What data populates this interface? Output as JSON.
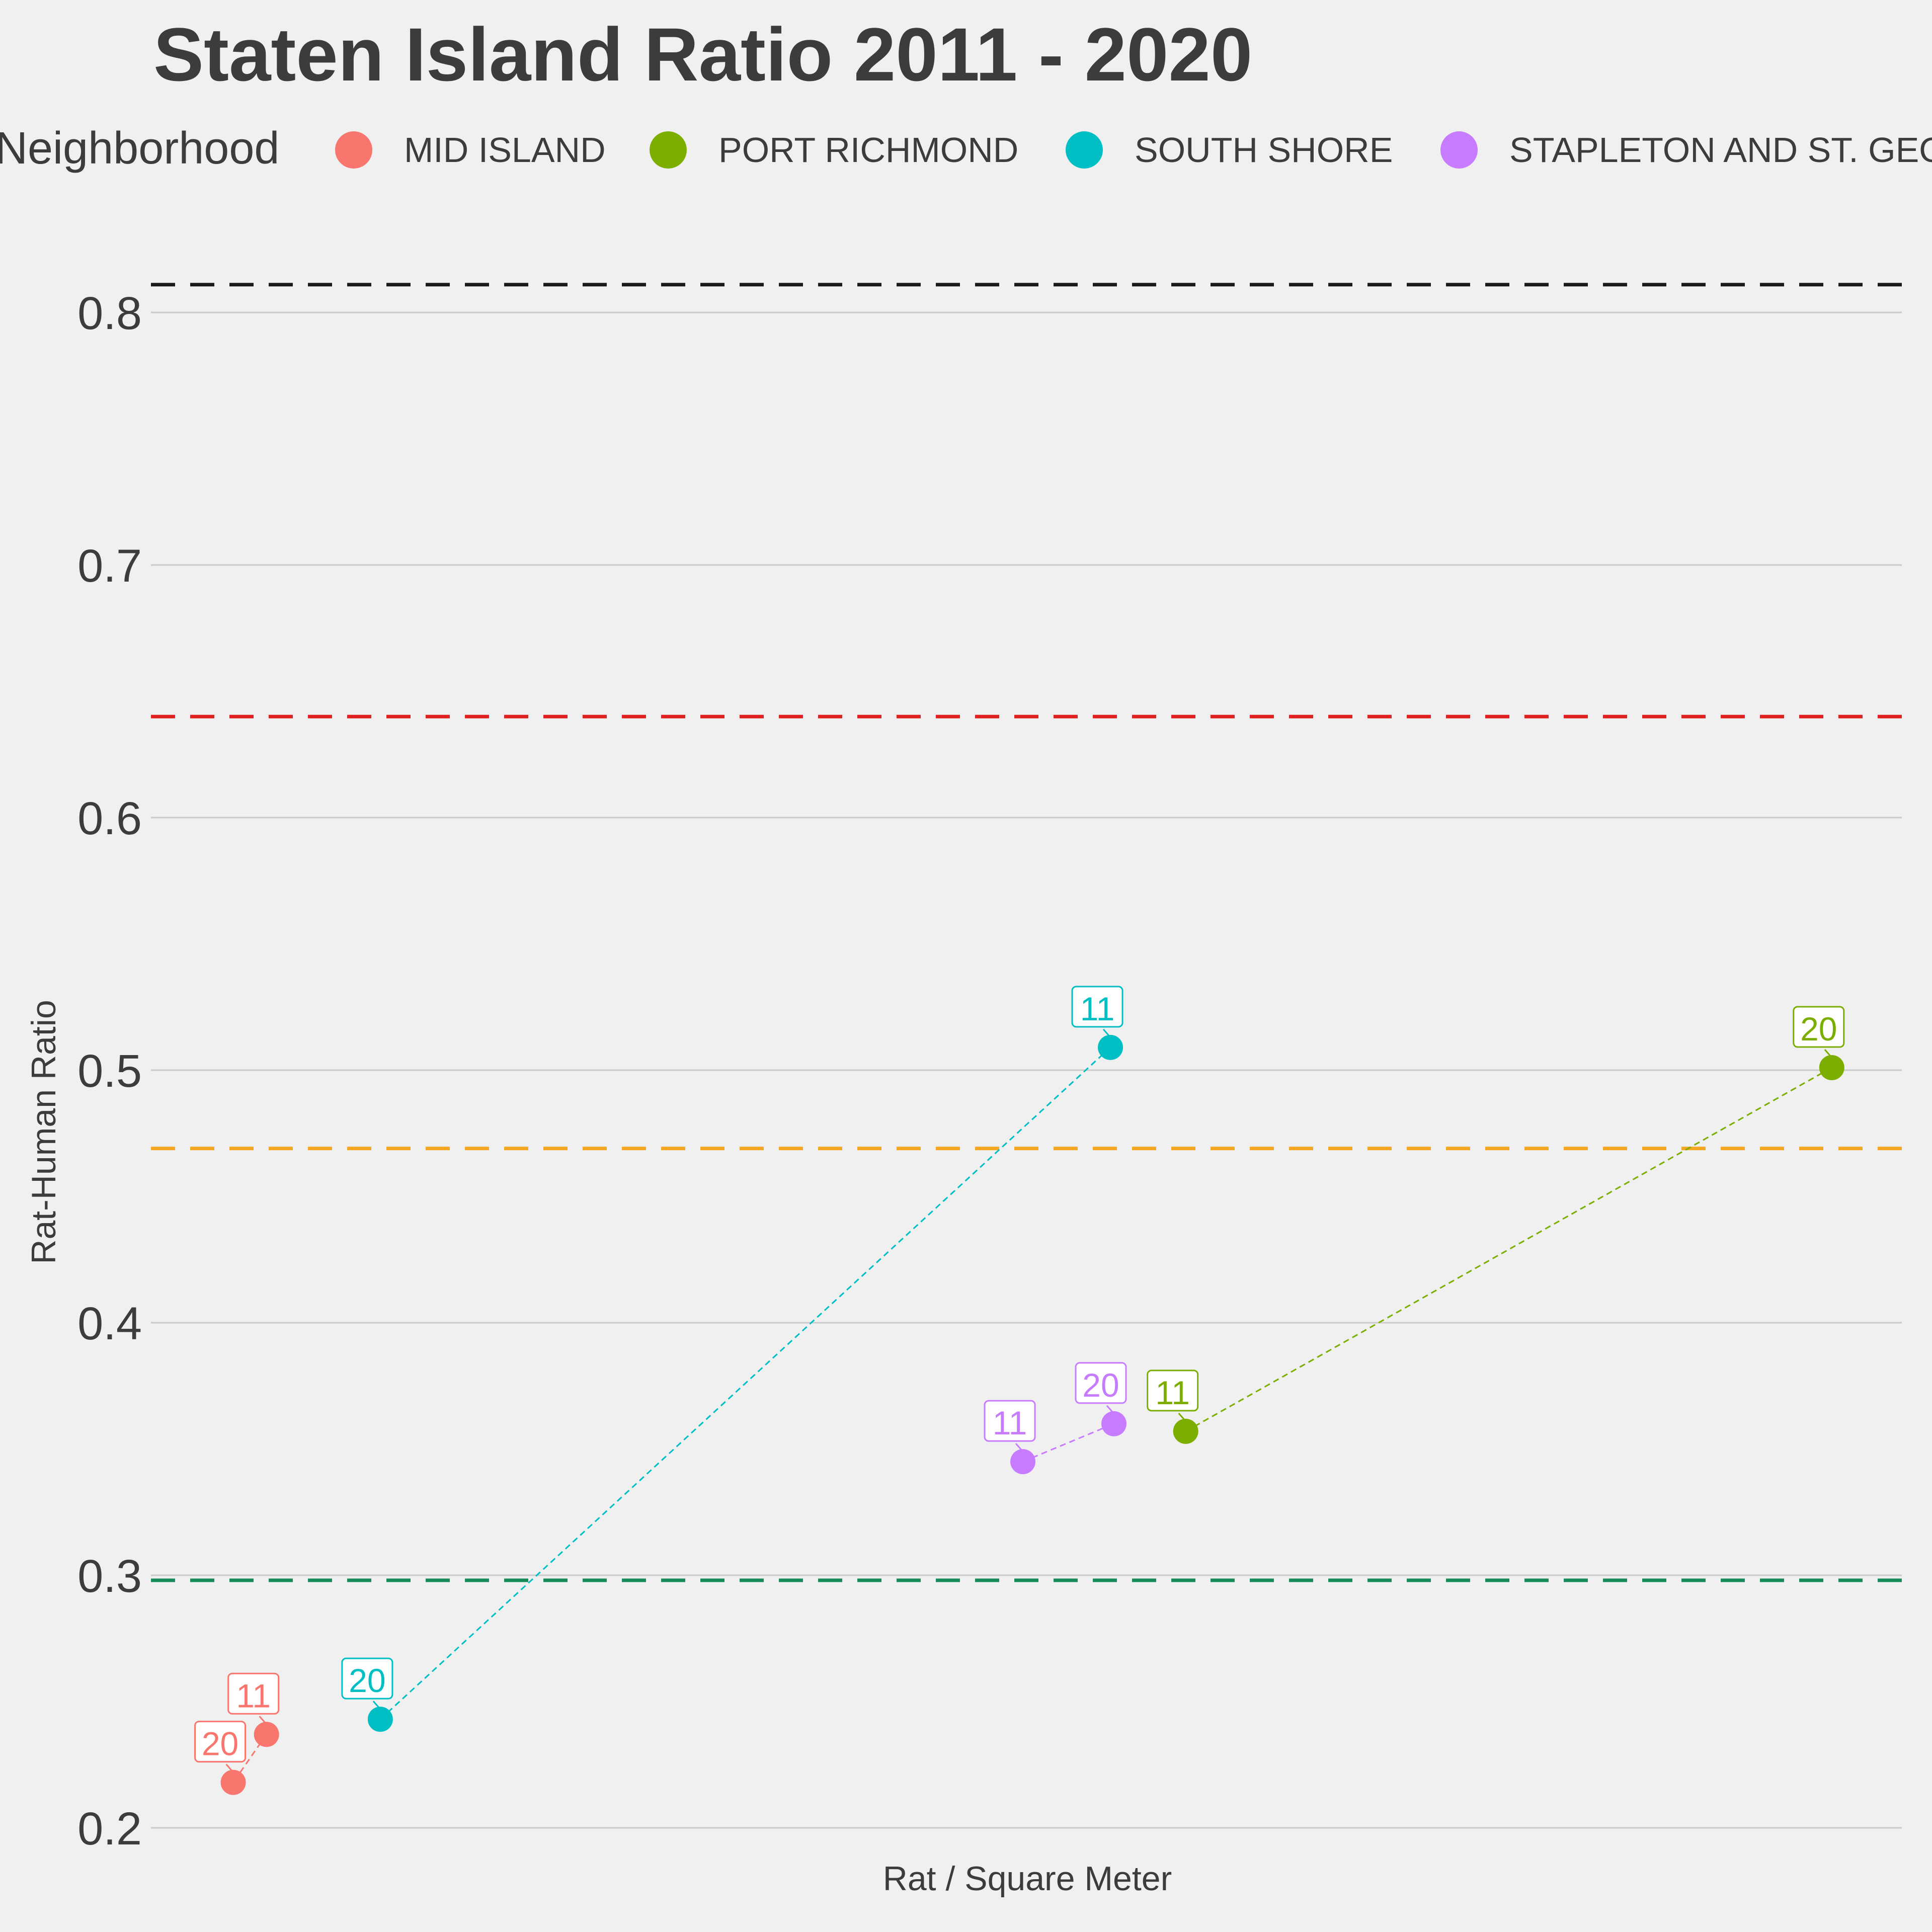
{
  "chart_data": {
    "type": "scatter",
    "title": "Staten Island Ratio 2011 - 2020",
    "xlabel": "Rat / Square Meter",
    "ylabel": "Rat-Human Ratio",
    "legend_title": "Neighborhood",
    "legend_position": "top",
    "grid": "horizontal",
    "x_ticks_shown": false,
    "ylim": [
      0.2,
      0.82
    ],
    "y_ticks": [
      "0.2",
      "0.3",
      "0.4",
      "0.5",
      "0.6",
      "0.7",
      "0.8"
    ],
    "reference_lines": [
      {
        "y": 0.811,
        "color": "#1a1a1a"
      },
      {
        "y": 0.64,
        "color": "#e0201f"
      },
      {
        "y": 0.469,
        "color": "#f5a623"
      },
      {
        "y": 0.298,
        "color": "#178a5a"
      }
    ],
    "series": [
      {
        "name": "MID ISLAND",
        "color": "#F8766D",
        "points": [
          {
            "label": "11",
            "x": 0.066,
            "y": 0.237
          },
          {
            "label": "20",
            "x": 0.047,
            "y": 0.218
          }
        ]
      },
      {
        "name": "PORT RICHMOND",
        "color": "#7CAE00",
        "points": [
          {
            "label": "11",
            "x": 0.591,
            "y": 0.357
          },
          {
            "label": "20",
            "x": 0.96,
            "y": 0.501
          }
        ]
      },
      {
        "name": "SOUTH SHORE",
        "color": "#00BFC4",
        "points": [
          {
            "label": "11",
            "x": 0.548,
            "y": 0.509
          },
          {
            "label": "20",
            "x": 0.131,
            "y": 0.243
          }
        ]
      },
      {
        "name": "STAPLETON AND ST. GEORGE",
        "color": "#C77CFF",
        "points": [
          {
            "label": "11",
            "x": 0.498,
            "y": 0.345
          },
          {
            "label": "20",
            "x": 0.55,
            "y": 0.36
          }
        ]
      }
    ]
  }
}
